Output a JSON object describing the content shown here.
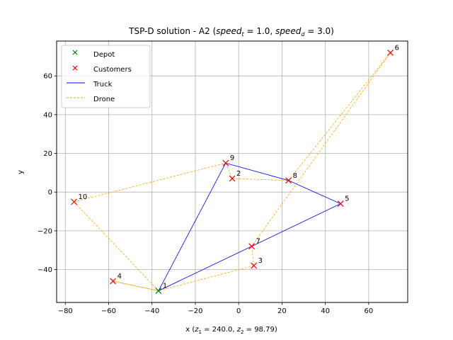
{
  "chart_data": {
    "type": "scatter",
    "title": "TSP-D solution - A2 ($speed_t = 1.0$, $speed_d = 3.0$)",
    "title_parts": {
      "prefix": "TSP-D solution - A2 (",
      "speed_t_base": "speed",
      "speed_t_sub": "t",
      "speed_t_value": " = 1.0, ",
      "speed_d_base": "speed",
      "speed_d_sub": "d",
      "speed_d_value": " = 3.0)"
    },
    "xlabel": "x ($z_1 = 240.0$, $z_2 = 98.79$)",
    "xlabel_parts": {
      "prefix": "x (",
      "z1_base": "z",
      "z1_sub": "1",
      "z1_value": " = 240.0, ",
      "z2_base": "z",
      "z2_sub": "2",
      "z2_value": " = 98.79)"
    },
    "ylabel": "y",
    "xlim": [
      -84,
      78
    ],
    "ylim": [
      -57,
      78
    ],
    "xticks": [
      -80,
      -60,
      -40,
      -20,
      0,
      20,
      40,
      60
    ],
    "yticks": [
      -40,
      -20,
      0,
      20,
      40,
      60
    ],
    "xtick_labels": [
      "−80",
      "−60",
      "−40",
      "−20",
      "0",
      "20",
      "40",
      "60"
    ],
    "ytick_labels": [
      "−40",
      "−20",
      "0",
      "20",
      "40",
      "60"
    ],
    "grid": true,
    "legend_position": "top-left",
    "legend": [
      {
        "label": "Depot",
        "marker": "x",
        "color": "#008000"
      },
      {
        "label": "Customers",
        "marker": "x",
        "color": "#ff0000"
      },
      {
        "label": "Truck",
        "line": "solid",
        "color": "#0000ff"
      },
      {
        "label": "Drone",
        "line": "dashed",
        "color": "#ffa500"
      }
    ],
    "depot": {
      "id": "1",
      "x": -37,
      "y": -51
    },
    "customers": [
      {
        "id": "2",
        "x": -3,
        "y": 7
      },
      {
        "id": "3",
        "x": 7,
        "y": -38
      },
      {
        "id": "4",
        "x": -58,
        "y": -46
      },
      {
        "id": "5",
        "x": 47,
        "y": -6
      },
      {
        "id": "6",
        "x": 70,
        "y": 72
      },
      {
        "id": "7",
        "x": 6,
        "y": -28
      },
      {
        "id": "8",
        "x": 23,
        "y": 6
      },
      {
        "id": "9",
        "x": -6,
        "y": 15
      },
      {
        "id": "10",
        "x": -76,
        "y": -5
      }
    ],
    "truck_route": [
      "1",
      "9",
      "8",
      "5",
      "7",
      "1"
    ],
    "drone_routes": [
      [
        "1",
        "4",
        "1"
      ],
      [
        "1",
        "10",
        "9"
      ],
      [
        "9",
        "2",
        "8"
      ],
      [
        "8",
        "6",
        "7"
      ],
      [
        "7",
        "3",
        "1"
      ]
    ]
  }
}
